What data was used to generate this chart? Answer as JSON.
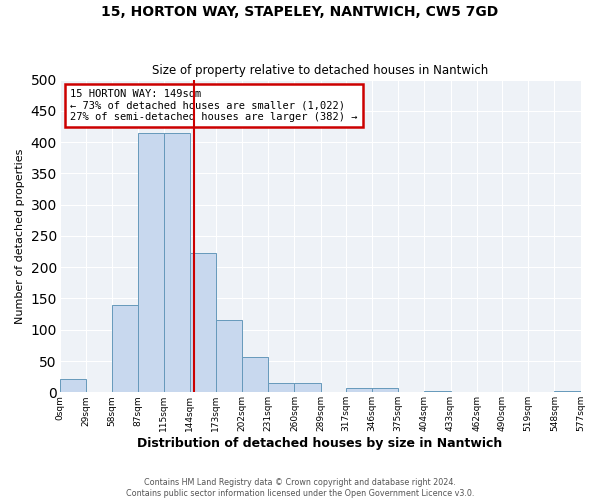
{
  "title": "15, HORTON WAY, STAPELEY, NANTWICH, CW5 7GD",
  "subtitle": "Size of property relative to detached houses in Nantwich",
  "xlabel": "Distribution of detached houses by size in Nantwich",
  "ylabel": "Number of detached properties",
  "bin_edges": [
    0,
    29,
    58,
    87,
    115,
    144,
    173,
    202,
    231,
    260,
    289,
    317,
    346,
    375,
    404,
    433,
    462,
    490,
    519,
    548,
    577
  ],
  "bin_counts": [
    22,
    0,
    140,
    415,
    415,
    222,
    115,
    57,
    15,
    15,
    0,
    7,
    7,
    0,
    2,
    0,
    0,
    0,
    0,
    2
  ],
  "bar_color": "#c8d8ee",
  "bar_edge_color": "#6699bb",
  "property_line_x": 149,
  "property_line_color": "#cc0000",
  "annotation_title": "15 HORTON WAY: 149sqm",
  "annotation_line1": "← 73% of detached houses are smaller (1,022)",
  "annotation_line2": "27% of semi-detached houses are larger (382) →",
  "annotation_box_color": "#cc0000",
  "ylim": [
    0,
    500
  ],
  "yticks": [
    0,
    50,
    100,
    150,
    200,
    250,
    300,
    350,
    400,
    450,
    500
  ],
  "tick_labels": [
    "0sqm",
    "29sqm",
    "58sqm",
    "87sqm",
    "115sqm",
    "144sqm",
    "173sqm",
    "202sqm",
    "231sqm",
    "260sqm",
    "289sqm",
    "317sqm",
    "346sqm",
    "375sqm",
    "404sqm",
    "433sqm",
    "462sqm",
    "490sqm",
    "519sqm",
    "548sqm",
    "577sqm"
  ],
  "footer_line1": "Contains HM Land Registry data © Crown copyright and database right 2024.",
  "footer_line2": "Contains public sector information licensed under the Open Government Licence v3.0.",
  "background_color": "#ffffff",
  "plot_background_color": "#eef2f7",
  "grid_color": "#ffffff"
}
